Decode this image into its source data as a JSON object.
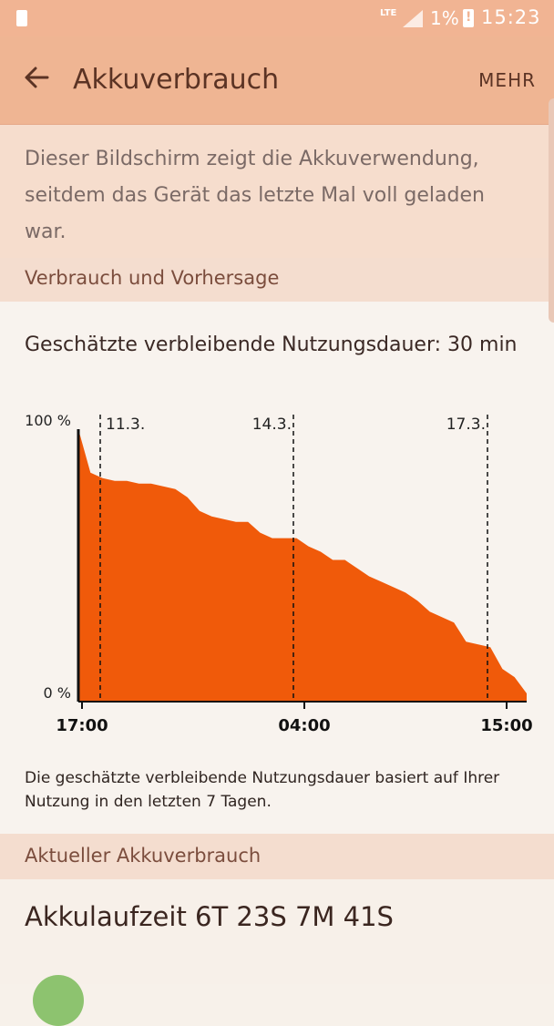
{
  "status_bar": {
    "network": "LTE",
    "battery_percent": "1%",
    "time": "15:23"
  },
  "header": {
    "title": "Akkuverbrauch",
    "action": "MEHR"
  },
  "info_text": "Dieser Bildschirm zeigt die Akkuverwendung, seitdem das Gerät das letzte Mal voll geladen war.",
  "sections": {
    "usage_forecast": "Verbrauch und Vorhersage",
    "current_usage": "Aktueller Akkuverbrauch"
  },
  "remaining_time": "Geschätzte verbleibende Nutzungsdauer: 30 min",
  "chart_data": {
    "type": "area",
    "x_tick_labels": [
      "17:00",
      "04:00",
      "15:00"
    ],
    "y_tick_labels": [
      "100 %",
      "0 %"
    ],
    "date_markers": [
      "11.3.",
      "14.3.",
      "17.3."
    ],
    "ylim": [
      0,
      100
    ],
    "series": [
      {
        "values": [
          100,
          84,
          82,
          81,
          81,
          80,
          80,
          79,
          78,
          75,
          70,
          68,
          67,
          66,
          66,
          62,
          60,
          60,
          60,
          57,
          55,
          52,
          52,
          49,
          46,
          44,
          42,
          40,
          37,
          33,
          31,
          29,
          22,
          21,
          20,
          12,
          9,
          3
        ]
      }
    ],
    "fill_color": "#f05a0a"
  },
  "forecast_note": "Die geschätzte verbleibende Nutzungsdauer basiert auf Ihrer Nutzung in den letzten 7 Tagen.",
  "battery_runtime": "Akkulaufzeit 6T 23S 7M 41S",
  "colors": {
    "status_bar": "#f1b493",
    "app_bar": "#efb593",
    "chart_fill": "#f05a0a",
    "section_header": "#f4ddcf"
  }
}
